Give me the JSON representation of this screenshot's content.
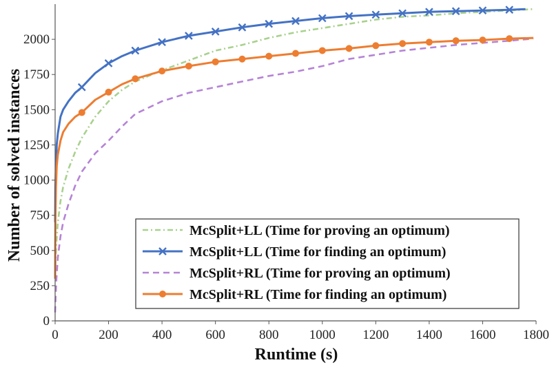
{
  "chart_data": {
    "type": "line",
    "title": "",
    "xlabel": "Runtime (s)",
    "ylabel": "Number of solved instances",
    "xlim": [
      0,
      1800
    ],
    "ylim": [
      0,
      2250
    ],
    "xticks": [
      0,
      200,
      400,
      600,
      800,
      1000,
      1200,
      1400,
      1600,
      1800
    ],
    "yticks": [
      0,
      250,
      500,
      750,
      1000,
      1250,
      1500,
      1750,
      2000
    ],
    "grid": false,
    "legend_position": "bottom-right",
    "series": [
      {
        "name": "McSplit+LL (Time for proving an optimum)",
        "color": "#a9d18e",
        "style": "dash-dot",
        "marker": "none",
        "x": [
          0,
          2,
          5,
          10,
          20,
          30,
          50,
          75,
          100,
          150,
          200,
          250,
          300,
          400,
          500,
          600,
          700,
          800,
          900,
          1000,
          1100,
          1200,
          1300,
          1400,
          1500,
          1600,
          1700,
          1790
        ],
        "y": [
          300,
          450,
          560,
          700,
          850,
          950,
          1080,
          1200,
          1300,
          1450,
          1560,
          1640,
          1700,
          1780,
          1850,
          1920,
          1960,
          2010,
          2050,
          2080,
          2110,
          2140,
          2160,
          2170,
          2185,
          2195,
          2205,
          2215
        ]
      },
      {
        "name": "McSplit+LL (Time for finding an optimum)",
        "color": "#4472c4",
        "style": "solid",
        "marker": "x",
        "x": [
          0,
          1,
          3,
          6,
          10,
          20,
          30,
          50,
          75,
          100,
          150,
          200,
          250,
          300,
          400,
          500,
          600,
          700,
          800,
          900,
          1000,
          1100,
          1200,
          1300,
          1400,
          1500,
          1600,
          1700,
          1760
        ],
        "y": [
          700,
          950,
          1100,
          1250,
          1330,
          1450,
          1500,
          1560,
          1620,
          1660,
          1760,
          1830,
          1880,
          1920,
          1980,
          2025,
          2055,
          2085,
          2110,
          2130,
          2150,
          2165,
          2175,
          2185,
          2195,
          2200,
          2205,
          2210,
          2215
        ],
        "marker_x": [
          100,
          200,
          300,
          400,
          500,
          600,
          700,
          800,
          900,
          1000,
          1100,
          1200,
          1300,
          1400,
          1500,
          1600,
          1700
        ]
      },
      {
        "name": "McSplit+RL (Time for proving an optimum)",
        "color": "#b583d6",
        "style": "dashed",
        "marker": "none",
        "x": [
          0,
          2,
          5,
          10,
          20,
          30,
          50,
          75,
          100,
          150,
          200,
          250,
          300,
          400,
          500,
          600,
          700,
          800,
          900,
          1000,
          1100,
          1200,
          1300,
          1400,
          1500,
          1600,
          1700,
          1790
        ],
        "y": [
          60,
          180,
          300,
          450,
          600,
          700,
          830,
          960,
          1060,
          1190,
          1280,
          1380,
          1470,
          1560,
          1620,
          1660,
          1700,
          1740,
          1770,
          1810,
          1860,
          1890,
          1920,
          1940,
          1960,
          1975,
          1990,
          2005
        ]
      },
      {
        "name": "McSplit+RL (Time for finding an optimum)",
        "color": "#ed7d31",
        "style": "solid",
        "marker": "circle",
        "x": [
          0,
          1,
          3,
          6,
          10,
          20,
          30,
          50,
          75,
          100,
          150,
          200,
          250,
          300,
          400,
          500,
          600,
          700,
          800,
          900,
          1000,
          1100,
          1200,
          1300,
          1400,
          1500,
          1600,
          1700,
          1790
        ],
        "y": [
          300,
          700,
          950,
          1100,
          1180,
          1280,
          1340,
          1400,
          1450,
          1480,
          1570,
          1625,
          1680,
          1720,
          1775,
          1810,
          1840,
          1860,
          1880,
          1900,
          1920,
          1935,
          1955,
          1970,
          1980,
          1990,
          1995,
          2005,
          2010
        ],
        "marker_x": [
          100,
          200,
          300,
          400,
          500,
          600,
          700,
          800,
          900,
          1000,
          1100,
          1200,
          1300,
          1400,
          1500,
          1600,
          1700
        ]
      }
    ]
  }
}
